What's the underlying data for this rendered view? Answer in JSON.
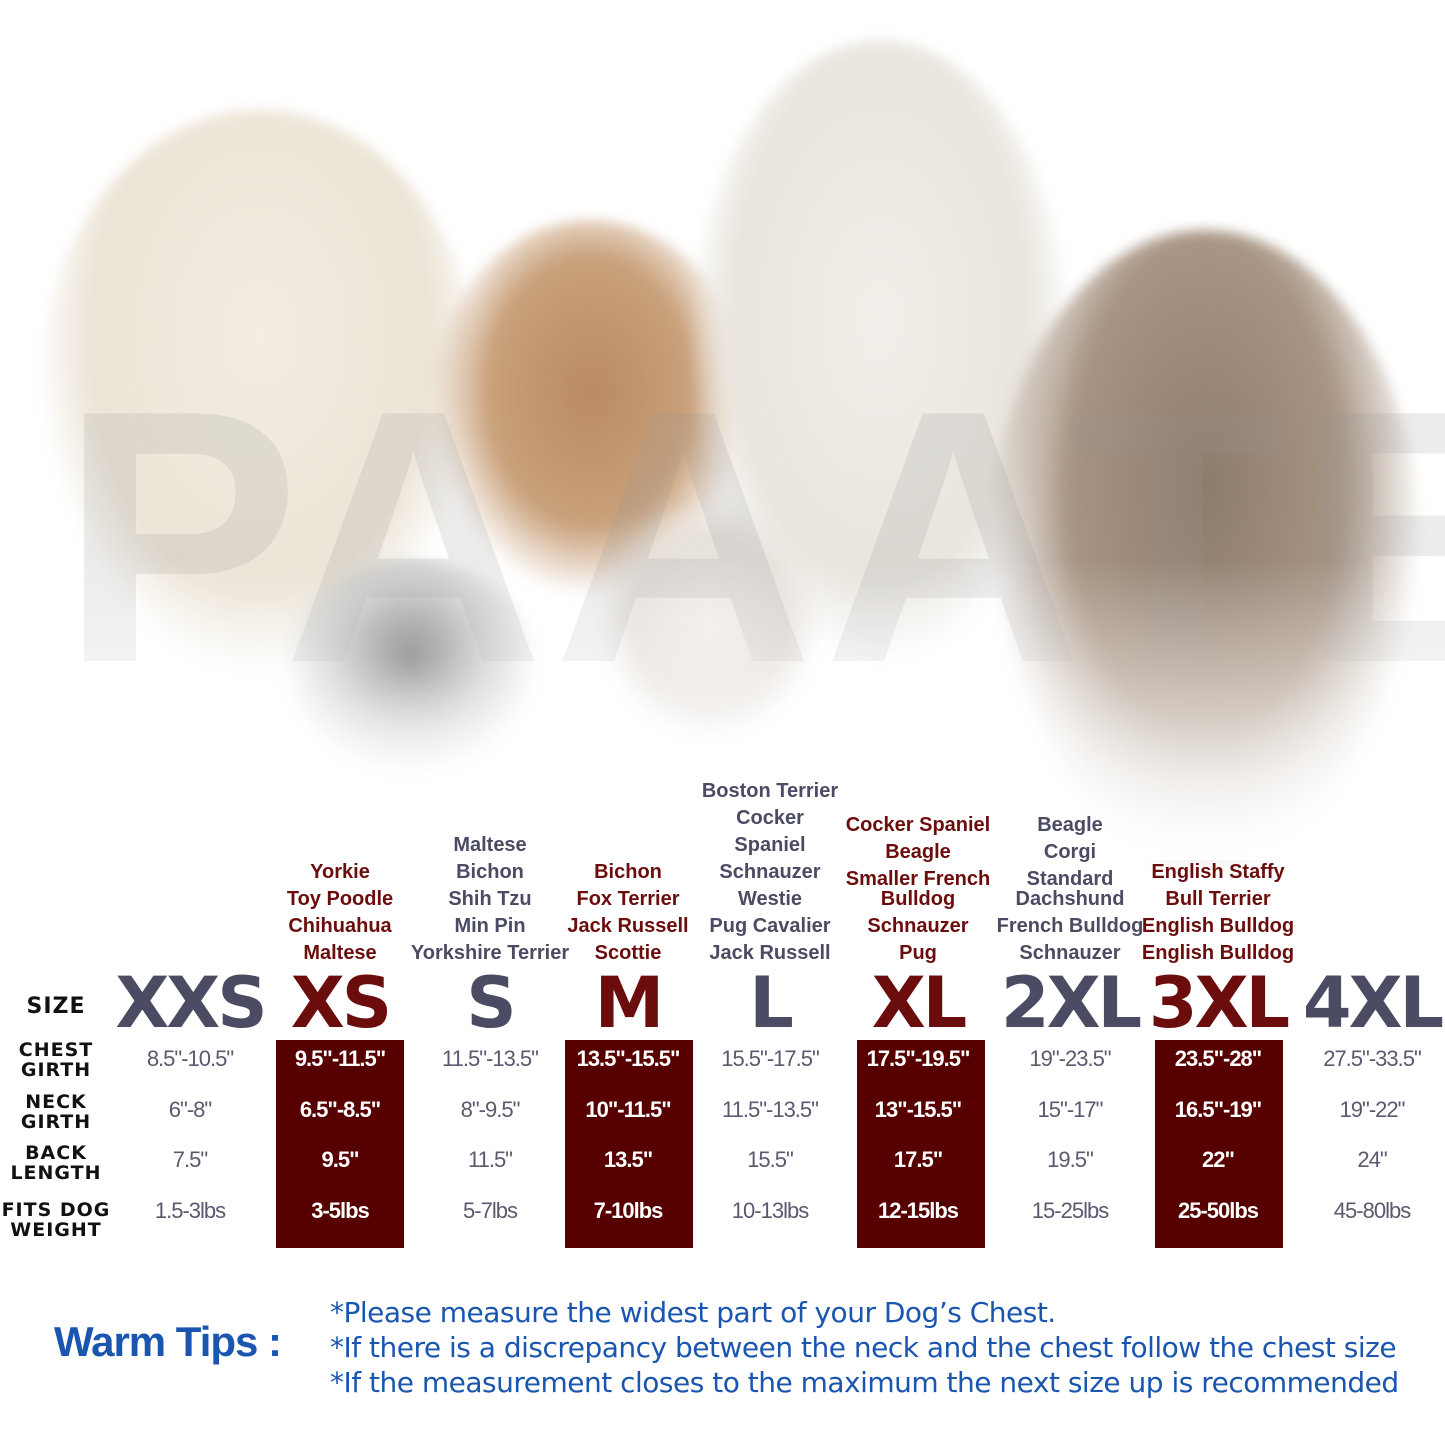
{
  "watermark": "PAAATE",
  "colors": {
    "dark": "#4b4b63",
    "maroon": "#560000",
    "accent_text": "#6b0d0d",
    "tips": "#1a56b0"
  },
  "row_labels": {
    "size": "SIZE",
    "chest": [
      "CHEST",
      "GIRTH"
    ],
    "neck": [
      "NECK",
      "GIRTH"
    ],
    "back": [
      "BACK",
      "LENGTH"
    ],
    "weight": [
      "FITS DOG",
      "WEIGHT"
    ]
  },
  "sizes": [
    {
      "label": "XXS",
      "highlight": false,
      "breeds": [],
      "chest": "8.5\"-10.5\"",
      "neck": "6\"-8\"",
      "back": "7.5\"",
      "weight": "1.5-3lbs"
    },
    {
      "label": "XS",
      "highlight": true,
      "breeds": [
        "Yorkie",
        "Toy Poodle",
        "Chihuahua",
        "Maltese"
      ],
      "chest": "9.5\"-11.5\"",
      "neck": "6.5\"-8.5\"",
      "back": "9.5\"",
      "weight": "3-5lbs"
    },
    {
      "label": "S",
      "highlight": false,
      "breeds": [
        "Maltese",
        "Bichon",
        "Shih Tzu",
        "Min Pin",
        "Yorkshire Terrier"
      ],
      "chest": "11.5\"-13.5\"",
      "neck": "8\"-9.5\"",
      "back": "11.5\"",
      "weight": "5-7lbs"
    },
    {
      "label": "M",
      "highlight": true,
      "breeds": [
        "Bichon",
        "Fox Terrier",
        "Jack Russell",
        "Scottie"
      ],
      "chest": "13.5\"-15.5\"",
      "neck": "10\"-11.5\"",
      "back": "13.5\"",
      "weight": "7-10lbs"
    },
    {
      "label": "L",
      "highlight": false,
      "breeds": [
        "Boston Terrier",
        "Cocker",
        "Spaniel",
        "Schnauzer",
        "Westie",
        "Pug Cavalier",
        "Jack Russell"
      ],
      "chest": "15.5\"-17.5\"",
      "neck": "11.5\"-13.5\"",
      "back": "15.5\"",
      "weight": "10-13lbs"
    },
    {
      "label": "XL",
      "highlight": true,
      "breeds": [
        "Cocker Spaniel",
        "Beagle",
        "Smaller French Bulldog",
        "Schnauzer",
        "Pug"
      ],
      "chest": "17.5\"-19.5\"",
      "neck": "13\"-15.5\"",
      "back": "17.5\"",
      "weight": "12-15lbs"
    },
    {
      "label": "2XL",
      "highlight": false,
      "breeds": [
        "Beagle",
        "Corgi",
        "Standard Dachshund",
        "French Bulldog",
        "Schnauzer"
      ],
      "chest": "19\"-23.5\"",
      "neck": "15\"-17\"",
      "back": "19.5\"",
      "weight": "15-25lbs"
    },
    {
      "label": "3XL",
      "highlight": true,
      "breeds": [
        "English Staffy",
        "Bull Terrier",
        "English Bulldog",
        "English Bulldog"
      ],
      "chest": "23.5\"-28\"",
      "neck": "16.5\"-19\"",
      "back": "22\"",
      "weight": "25-50lbs"
    },
    {
      "label": "4XL",
      "highlight": false,
      "breeds": [],
      "chest": "27.5\"-33.5\"",
      "neck": "19\"-22\"",
      "back": "24\"",
      "weight": "45-80lbs"
    }
  ],
  "tips": {
    "title": "Warm Tips :",
    "lines": [
      "*Please measure the widest part of your Dog’s Chest.",
      "*If there is a discrepancy between the neck and the chest  follow the chest size",
      "*If the measurement closes to the maximum the next size up is recommended"
    ]
  }
}
